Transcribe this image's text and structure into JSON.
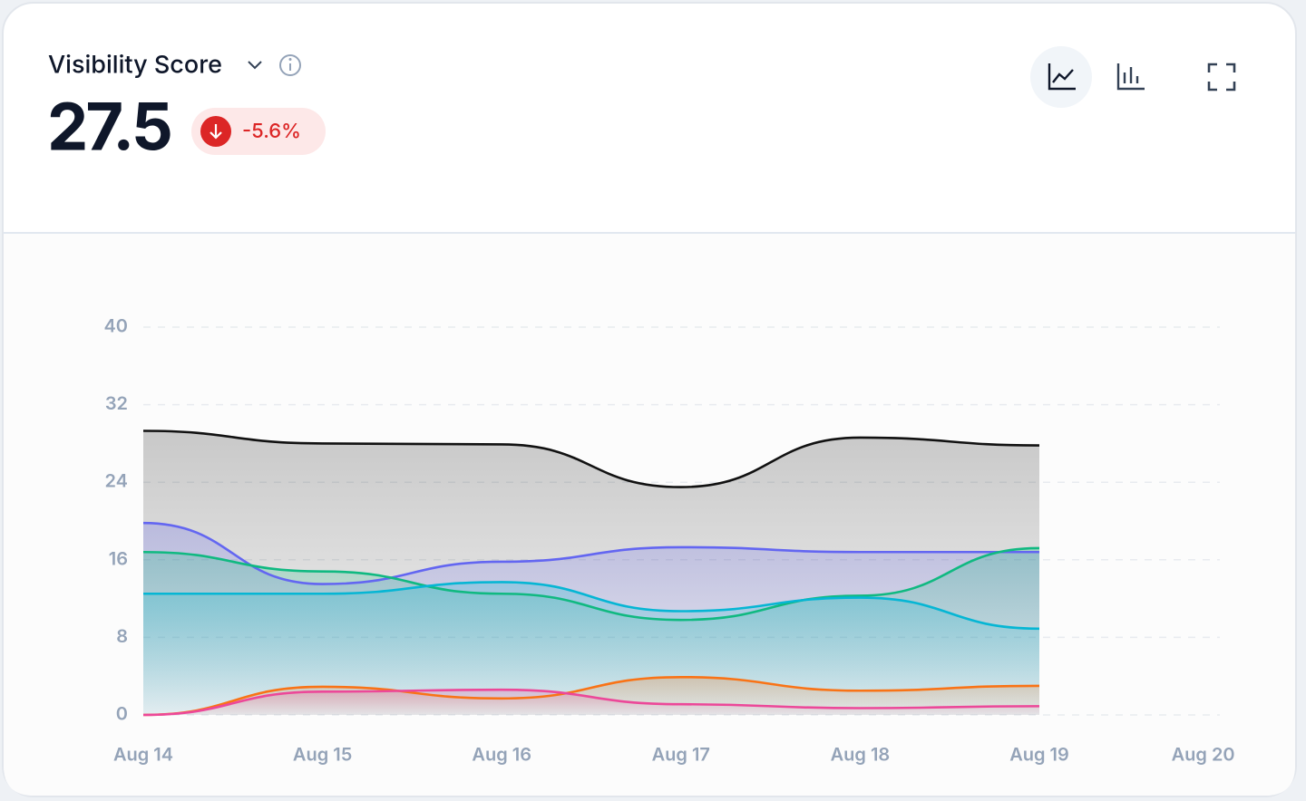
{
  "header": {
    "title": "Visibility Score",
    "value": "27.5",
    "change": "-5.6%"
  },
  "chart_data": {
    "type": "area",
    "categories": [
      "Aug 14",
      "Aug 15",
      "Aug 16",
      "Aug 17",
      "Aug 18",
      "Aug 19",
      "Aug 20"
    ],
    "series": [
      {
        "color": "#111111",
        "values": [
          29.3,
          28.0,
          27.9,
          23.5,
          28.6,
          27.8,
          null
        ]
      },
      {
        "color": "#6366f1",
        "values": [
          19.8,
          13.5,
          15.8,
          17.3,
          16.8,
          16.8,
          null
        ]
      },
      {
        "color": "#10b981",
        "values": [
          16.8,
          14.8,
          12.5,
          9.8,
          12.3,
          17.2,
          null
        ]
      },
      {
        "color": "#06b6d4",
        "values": [
          12.5,
          12.5,
          13.7,
          10.7,
          12.1,
          8.9,
          null
        ]
      },
      {
        "color": "#f97316",
        "values": [
          0,
          2.9,
          1.7,
          3.9,
          2.5,
          3.0,
          null
        ]
      },
      {
        "color": "#ec4899",
        "values": [
          0,
          2.4,
          2.6,
          1.1,
          0.7,
          0.9,
          null
        ]
      }
    ],
    "ylim": [
      0,
      40
    ],
    "yticks": [
      0,
      8,
      16,
      24,
      32,
      40
    ],
    "grid": true
  }
}
